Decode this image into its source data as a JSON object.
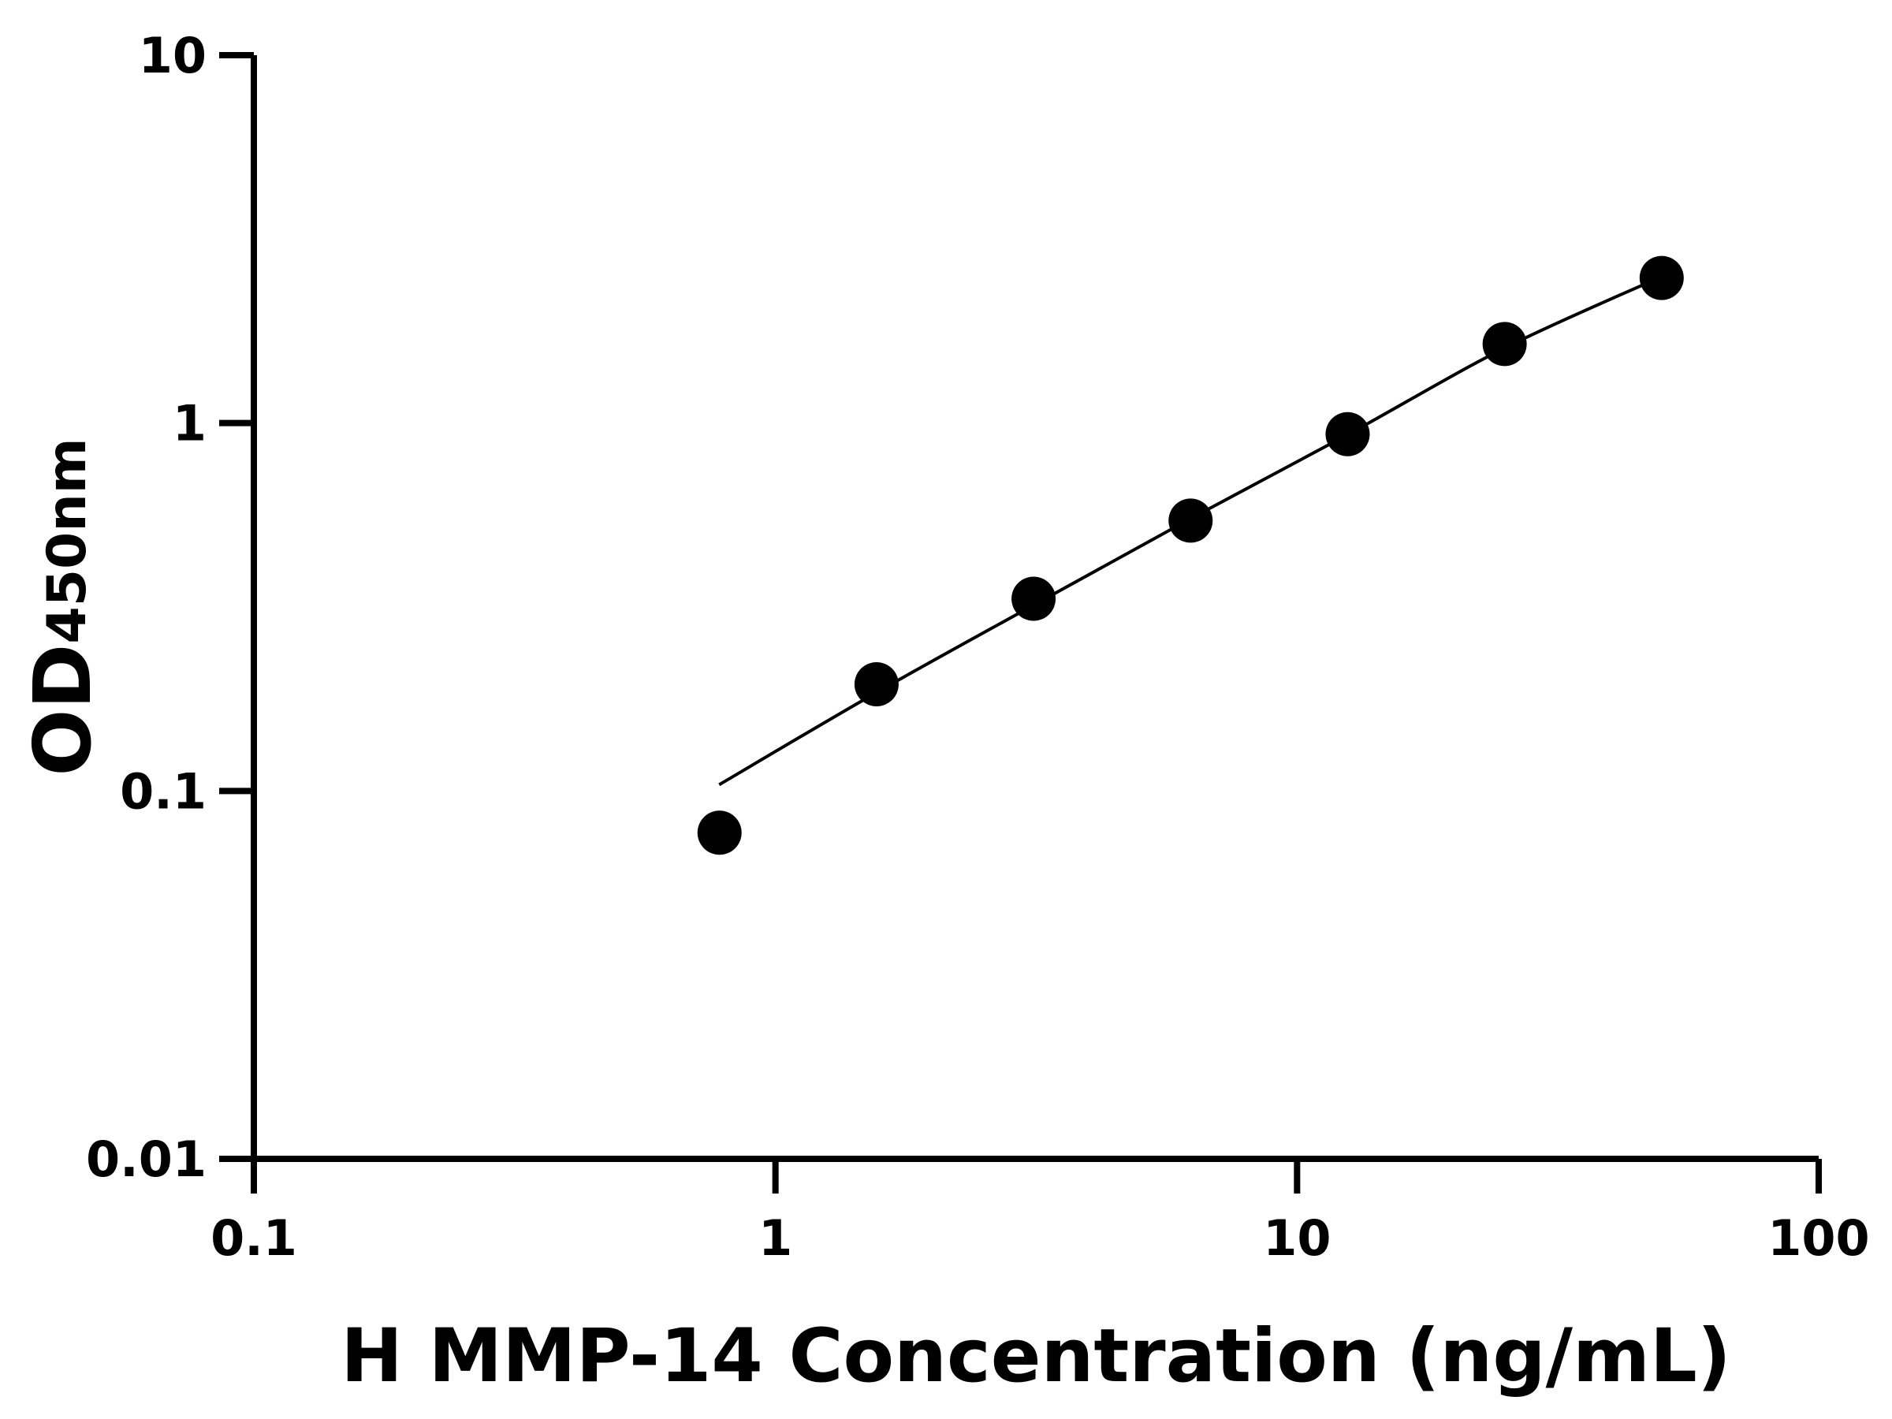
{
  "chart_data": {
    "type": "scatter",
    "title": "",
    "xlabel": "H MMP-14 Concentration (ng/mL)",
    "ylabel": "OD",
    "ylabel_subscript": "450nm",
    "xscale": "log",
    "yscale": "log",
    "xlim": [
      0.1,
      100
    ],
    "ylim": [
      0.01,
      10
    ],
    "xticks": [
      {
        "v": 0.1,
        "label": "0.1"
      },
      {
        "v": 1,
        "label": "1"
      },
      {
        "v": 10,
        "label": "10"
      },
      {
        "v": 100,
        "label": "100"
      }
    ],
    "yticks": [
      {
        "v": 0.01,
        "label": "0.01"
      },
      {
        "v": 0.1,
        "label": "0.1"
      },
      {
        "v": 1,
        "label": "1"
      },
      {
        "v": 10,
        "label": "10"
      }
    ],
    "grid": false,
    "points": {
      "x": [
        0.78125,
        1.5625,
        3.125,
        6.25,
        12.5,
        25,
        50
      ],
      "y": [
        0.077,
        0.195,
        0.333,
        0.543,
        0.933,
        1.64,
        2.48
      ]
    },
    "fit_curve": {
      "x": [
        0.78,
        1.56,
        3.125,
        6.25,
        12.5,
        25,
        50
      ],
      "y": [
        0.104,
        0.185,
        0.32,
        0.55,
        0.93,
        1.6,
        2.5
      ]
    },
    "colors": {
      "points": "#000000",
      "curve": "#000000",
      "axes": "#000000"
    }
  }
}
